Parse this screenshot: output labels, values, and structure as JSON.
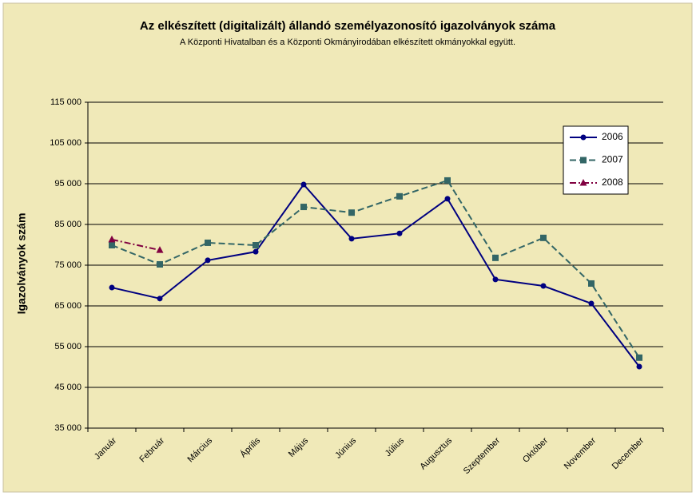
{
  "chart_data": {
    "type": "line",
    "title": "Az elkészített (digitalizált) állandó személyazonosító igazolványok száma",
    "subtitle": "A Központi Hivatalban és a Központi Okmányirodában elkészített okmányokkal együtt.",
    "y_label": "Igazolványok szám",
    "categories": [
      "Január",
      "Február",
      "Március",
      "Április",
      "Május",
      "Június",
      "Július",
      "Augusztus",
      "Szeptember",
      "Október",
      "November",
      "December"
    ],
    "series": [
      {
        "name": "2006",
        "color": "#000080",
        "marker": "circle",
        "dash": "none",
        "values": [
          69500,
          66800,
          76200,
          78300,
          94800,
          81500,
          82800,
          91300,
          71500,
          69900,
          65600,
          50100
        ]
      },
      {
        "name": "2007",
        "color": "#336666",
        "marker": "square",
        "dash": "dashed",
        "values": [
          79900,
          75200,
          80500,
          79900,
          89300,
          87900,
          91900,
          95800,
          76800,
          81700,
          70500,
          52300
        ]
      },
      {
        "name": "2008",
        "color": "#800040",
        "marker": "triangle",
        "dash": "dashdot",
        "values": [
          81300,
          78700,
          null,
          null,
          null,
          null,
          null,
          null,
          null,
          null,
          null,
          null
        ]
      }
    ],
    "ylim": [
      35000,
      115000
    ],
    "yticks": [
      {
        "value": 35000,
        "label": "35 000"
      },
      {
        "value": 45000,
        "label": "45 000"
      },
      {
        "value": 55000,
        "label": "55 000"
      },
      {
        "value": 65000,
        "label": "65 000"
      },
      {
        "value": 75000,
        "label": "75 000"
      },
      {
        "value": 85000,
        "label": "85 000"
      },
      {
        "value": 95000,
        "label": "95 000"
      },
      {
        "value": 105000,
        "label": "105 000"
      },
      {
        "value": 115000,
        "label": "115 000"
      }
    ],
    "grid": true,
    "legend": "upper right"
  }
}
